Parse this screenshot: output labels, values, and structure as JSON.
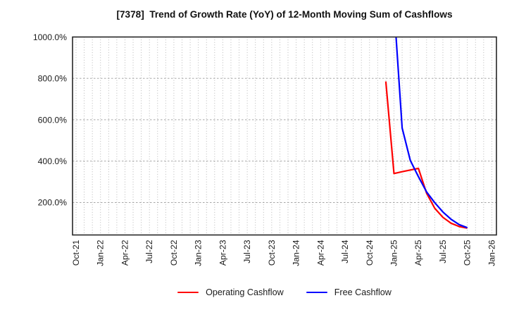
{
  "chart_data": {
    "type": "line",
    "title": "[7378]  Trend of Growth Rate (YoY) of 12-Month Moving Sum of Cashflows",
    "xlabel": "",
    "ylabel": "",
    "grid": true,
    "legend_position": "bottom-center",
    "background_color": "#ffffff",
    "border_color": "#262626",
    "gridline_color": "#b0b0b0",
    "y_axis": {
      "unit": "%",
      "ylim": [
        43,
        1000
      ],
      "tick_values": [
        1000,
        800,
        600,
        400,
        200
      ],
      "tick_labels": [
        "1000.0%",
        "800.0%",
        "600.0%",
        "400.0%",
        "200.0%"
      ]
    },
    "x_axis": {
      "start_month": "Oct-21",
      "end_month": "Jan-26",
      "months_between_labeled_ticks": 3,
      "gridlines_every_month": true,
      "tick_labels": [
        "Oct-21",
        "Jan-22",
        "Apr-22",
        "Jul-22",
        "Oct-22",
        "Jan-23",
        "Apr-23",
        "Jul-23",
        "Oct-23",
        "Jan-24",
        "Apr-24",
        "Jul-24",
        "Oct-24",
        "Jan-25",
        "Apr-25",
        "Jul-25",
        "Oct-25",
        "Jan-26"
      ],
      "tick_month_indices": [
        0,
        3,
        6,
        9,
        12,
        15,
        18,
        21,
        24,
        27,
        30,
        33,
        36,
        39,
        42,
        45,
        48,
        51
      ]
    },
    "series": [
      {
        "name": "Operating Cashflow",
        "color": "#ff0000",
        "points": [
          {
            "month": "Dec-24",
            "m": 38,
            "value": 785
          },
          {
            "month": "Jan-25",
            "m": 39,
            "value": 340
          },
          {
            "month": "Feb-25",
            "m": 40,
            "value": 349
          },
          {
            "month": "Mar-25",
            "m": 41,
            "value": 357
          },
          {
            "month": "Apr-25",
            "m": 42,
            "value": 365
          },
          {
            "month": "May-25",
            "m": 43,
            "value": 245
          },
          {
            "month": "Jun-25",
            "m": 44,
            "value": 172
          },
          {
            "month": "Jul-25",
            "m": 45,
            "value": 128
          },
          {
            "month": "Aug-25",
            "m": 46,
            "value": 100
          },
          {
            "month": "Sep-25",
            "m": 47,
            "value": 84
          },
          {
            "month": "Oct-25",
            "m": 48,
            "value": 76
          }
        ]
      },
      {
        "name": "Free Cashflow",
        "color": "#0000ff",
        "points": [
          {
            "month": "Jan-25",
            "m": 39,
            "value": 1150
          },
          {
            "month": "Feb-25",
            "m": 40,
            "value": 560
          },
          {
            "month": "Mar-25",
            "m": 41,
            "value": 403
          },
          {
            "month": "Apr-25",
            "m": 42,
            "value": 325
          },
          {
            "month": "May-25",
            "m": 43,
            "value": 251
          },
          {
            "month": "Jun-25",
            "m": 44,
            "value": 199
          },
          {
            "month": "Jul-25",
            "m": 45,
            "value": 154
          },
          {
            "month": "Aug-25",
            "m": 46,
            "value": 119
          },
          {
            "month": "Sep-25",
            "m": 47,
            "value": 93
          },
          {
            "month": "Oct-25",
            "m": 48,
            "value": 78
          }
        ]
      }
    ]
  }
}
